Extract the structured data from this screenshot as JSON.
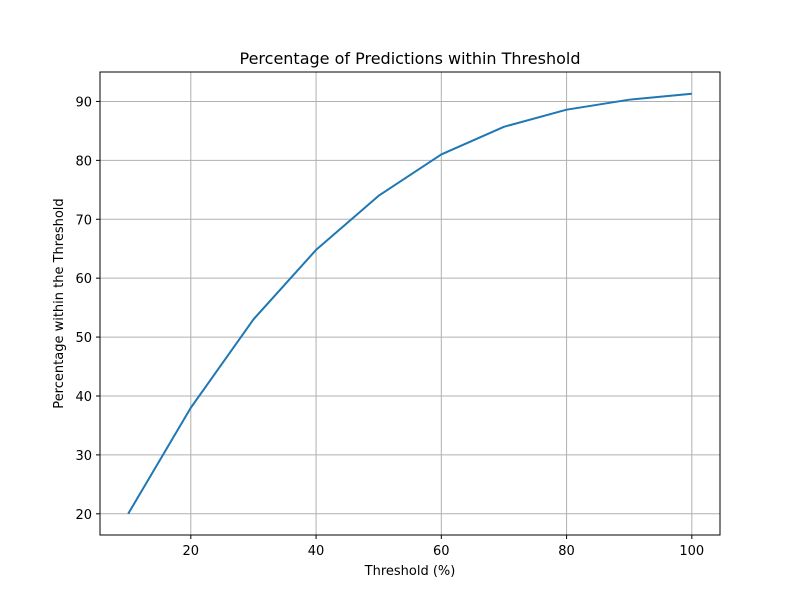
{
  "chart_data": {
    "type": "line",
    "title": "Percentage of Predictions within Threshold",
    "xlabel": "Threshold (%)",
    "ylabel": "Percentage within the Threshold",
    "xlim": [
      5.5,
      104.5
    ],
    "ylim": [
      16.4,
      95
    ],
    "xticks": [
      20,
      40,
      60,
      80,
      100
    ],
    "yticks": [
      20,
      30,
      40,
      50,
      60,
      70,
      80,
      90
    ],
    "grid": true,
    "series": [
      {
        "color": "#1f77b4",
        "x": [
          10,
          20,
          30,
          40,
          50,
          60,
          70,
          80,
          90,
          100
        ],
        "y": [
          20.0,
          38.0,
          53.0,
          64.8,
          74.0,
          81.0,
          85.7,
          88.6,
          90.3,
          91.3
        ]
      }
    ]
  }
}
